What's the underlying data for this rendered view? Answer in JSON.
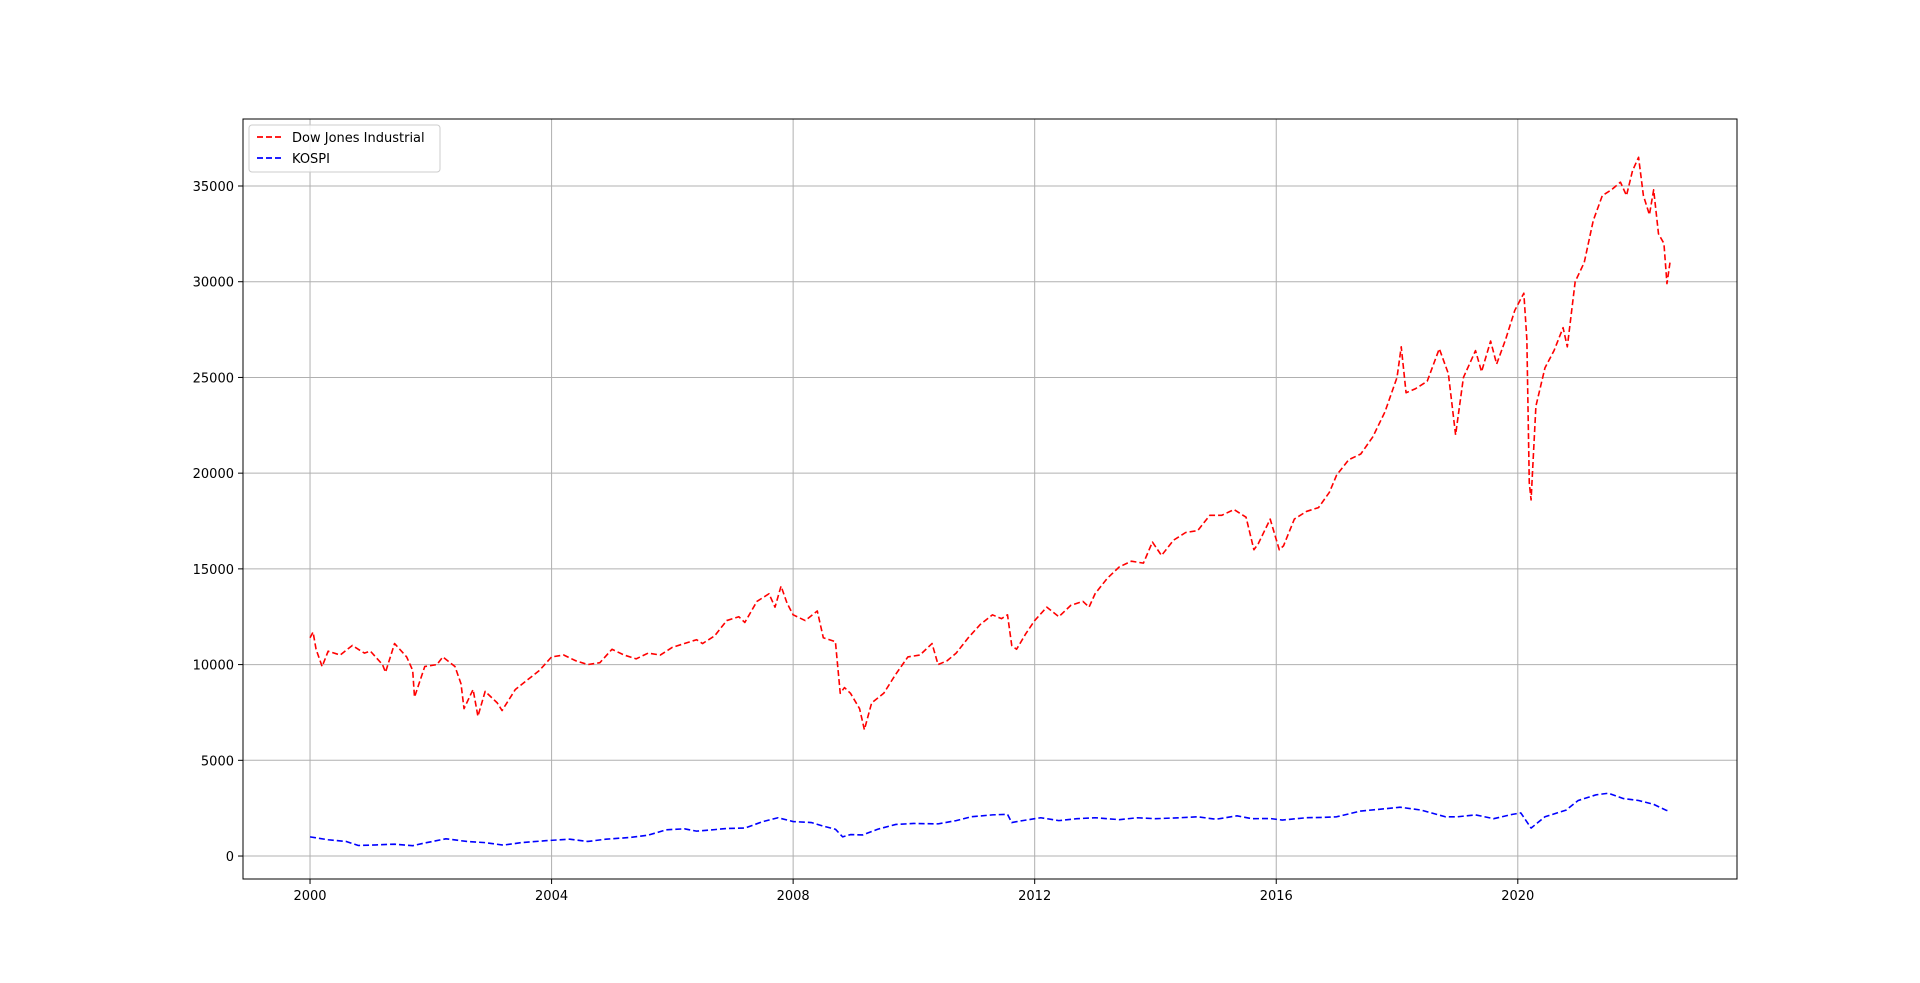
{
  "chart_data": {
    "type": "line",
    "title": "",
    "xlabel": "",
    "ylabel": "",
    "xlim": [
      1998.89,
      2023.63
    ],
    "ylim": [
      -1200,
      38500
    ],
    "xticks": [
      2000,
      2004,
      2008,
      2012,
      2016,
      2020
    ],
    "xtick_labels": [
      "2000",
      "2004",
      "2008",
      "2012",
      "2016",
      "2020"
    ],
    "yticks": [
      0,
      5000,
      10000,
      15000,
      20000,
      25000,
      30000,
      35000
    ],
    "ytick_labels": [
      "0",
      "5000",
      "10000",
      "15000",
      "20000",
      "25000",
      "30000",
      "35000"
    ],
    "grid": true,
    "legend_position": "upper-left",
    "series": [
      {
        "name": "Dow Jones Industrial",
        "color": "#ff0000",
        "linestyle": "dashed",
        "points": [
          [
            2000.0,
            11400
          ],
          [
            2000.05,
            11700
          ],
          [
            2000.1,
            10800
          ],
          [
            2000.2,
            9900
          ],
          [
            2000.3,
            10700
          ],
          [
            2000.5,
            10500
          ],
          [
            2000.7,
            11000
          ],
          [
            2000.9,
            10600
          ],
          [
            2001.0,
            10700
          ],
          [
            2001.2,
            10000
          ],
          [
            2001.25,
            9600
          ],
          [
            2001.4,
            11100
          ],
          [
            2001.6,
            10400
          ],
          [
            2001.7,
            9700
          ],
          [
            2001.73,
            8300
          ],
          [
            2001.9,
            9900
          ],
          [
            2002.1,
            10000
          ],
          [
            2002.2,
            10400
          ],
          [
            2002.4,
            9900
          ],
          [
            2002.5,
            9000
          ],
          [
            2002.55,
            7700
          ],
          [
            2002.7,
            8700
          ],
          [
            2002.78,
            7300
          ],
          [
            2002.9,
            8600
          ],
          [
            2003.1,
            8000
          ],
          [
            2003.18,
            7600
          ],
          [
            2003.4,
            8700
          ],
          [
            2003.6,
            9200
          ],
          [
            2003.8,
            9700
          ],
          [
            2004.0,
            10400
          ],
          [
            2004.2,
            10500
          ],
          [
            2004.4,
            10200
          ],
          [
            2004.6,
            10000
          ],
          [
            2004.8,
            10100
          ],
          [
            2005.0,
            10800
          ],
          [
            2005.2,
            10500
          ],
          [
            2005.4,
            10300
          ],
          [
            2005.6,
            10600
          ],
          [
            2005.8,
            10500
          ],
          [
            2006.0,
            10900
          ],
          [
            2006.2,
            11100
          ],
          [
            2006.4,
            11300
          ],
          [
            2006.5,
            11100
          ],
          [
            2006.7,
            11500
          ],
          [
            2006.9,
            12300
          ],
          [
            2007.1,
            12500
          ],
          [
            2007.2,
            12200
          ],
          [
            2007.4,
            13300
          ],
          [
            2007.6,
            13700
          ],
          [
            2007.7,
            13000
          ],
          [
            2007.8,
            14100
          ],
          [
            2007.9,
            13200
          ],
          [
            2008.0,
            12600
          ],
          [
            2008.2,
            12300
          ],
          [
            2008.4,
            12800
          ],
          [
            2008.5,
            11400
          ],
          [
            2008.7,
            11200
          ],
          [
            2008.78,
            8500
          ],
          [
            2008.85,
            8800
          ],
          [
            2008.95,
            8500
          ],
          [
            2009.1,
            7700
          ],
          [
            2009.18,
            6600
          ],
          [
            2009.3,
            8000
          ],
          [
            2009.5,
            8500
          ],
          [
            2009.7,
            9500
          ],
          [
            2009.9,
            10400
          ],
          [
            2010.1,
            10500
          ],
          [
            2010.3,
            11100
          ],
          [
            2010.4,
            10000
          ],
          [
            2010.55,
            10200
          ],
          [
            2010.7,
            10600
          ],
          [
            2010.9,
            11400
          ],
          [
            2011.1,
            12100
          ],
          [
            2011.3,
            12600
          ],
          [
            2011.45,
            12400
          ],
          [
            2011.55,
            12600
          ],
          [
            2011.62,
            11000
          ],
          [
            2011.7,
            10800
          ],
          [
            2011.85,
            11600
          ],
          [
            2012.0,
            12300
          ],
          [
            2012.2,
            13000
          ],
          [
            2012.4,
            12500
          ],
          [
            2012.6,
            13100
          ],
          [
            2012.8,
            13300
          ],
          [
            2012.9,
            13000
          ],
          [
            2013.0,
            13700
          ],
          [
            2013.2,
            14500
          ],
          [
            2013.4,
            15100
          ],
          [
            2013.6,
            15400
          ],
          [
            2013.8,
            15300
          ],
          [
            2013.95,
            16400
          ],
          [
            2014.1,
            15700
          ],
          [
            2014.3,
            16500
          ],
          [
            2014.5,
            16900
          ],
          [
            2014.7,
            17000
          ],
          [
            2014.9,
            17800
          ],
          [
            2015.1,
            17800
          ],
          [
            2015.3,
            18100
          ],
          [
            2015.5,
            17700
          ],
          [
            2015.63,
            16000
          ],
          [
            2015.7,
            16300
          ],
          [
            2015.9,
            17600
          ],
          [
            2016.05,
            16000
          ],
          [
            2016.12,
            16200
          ],
          [
            2016.3,
            17600
          ],
          [
            2016.5,
            18000
          ],
          [
            2016.7,
            18200
          ],
          [
            2016.88,
            19000
          ],
          [
            2017.0,
            19900
          ],
          [
            2017.2,
            20700
          ],
          [
            2017.4,
            21000
          ],
          [
            2017.6,
            21900
          ],
          [
            2017.8,
            23200
          ],
          [
            2018.0,
            25000
          ],
          [
            2018.07,
            26600
          ],
          [
            2018.15,
            24200
          ],
          [
            2018.3,
            24400
          ],
          [
            2018.5,
            24800
          ],
          [
            2018.7,
            26500
          ],
          [
            2018.85,
            25200
          ],
          [
            2018.97,
            22000
          ],
          [
            2019.1,
            25000
          ],
          [
            2019.3,
            26400
          ],
          [
            2019.4,
            25300
          ],
          [
            2019.55,
            26900
          ],
          [
            2019.65,
            25700
          ],
          [
            2019.8,
            27000
          ],
          [
            2019.95,
            28500
          ],
          [
            2020.1,
            29400
          ],
          [
            2020.15,
            27000
          ],
          [
            2020.19,
            19500
          ],
          [
            2020.22,
            18600
          ],
          [
            2020.3,
            23500
          ],
          [
            2020.45,
            25500
          ],
          [
            2020.6,
            26400
          ],
          [
            2020.75,
            27600
          ],
          [
            2020.82,
            26600
          ],
          [
            2020.95,
            30000
          ],
          [
            2021.1,
            31000
          ],
          [
            2021.25,
            33200
          ],
          [
            2021.4,
            34500
          ],
          [
            2021.55,
            34800
          ],
          [
            2021.7,
            35200
          ],
          [
            2021.8,
            34500
          ],
          [
            2021.9,
            35800
          ],
          [
            2022.0,
            36500
          ],
          [
            2022.08,
            34500
          ],
          [
            2022.18,
            33500
          ],
          [
            2022.25,
            34800
          ],
          [
            2022.33,
            32500
          ],
          [
            2022.42,
            32000
          ],
          [
            2022.47,
            29900
          ],
          [
            2022.52,
            31000
          ]
        ]
      },
      {
        "name": "KOSPI",
        "color": "#0000ff",
        "linestyle": "dashed",
        "points": [
          [
            2000.0,
            1000
          ],
          [
            2000.3,
            850
          ],
          [
            2000.6,
            760
          ],
          [
            2000.8,
            550
          ],
          [
            2001.1,
            580
          ],
          [
            2001.4,
            620
          ],
          [
            2001.7,
            540
          ],
          [
            2001.9,
            680
          ],
          [
            2002.25,
            900
          ],
          [
            2002.6,
            760
          ],
          [
            2002.9,
            700
          ],
          [
            2003.2,
            570
          ],
          [
            2003.5,
            700
          ],
          [
            2003.9,
            800
          ],
          [
            2004.3,
            880
          ],
          [
            2004.6,
            760
          ],
          [
            2004.9,
            880
          ],
          [
            2005.3,
            970
          ],
          [
            2005.6,
            1090
          ],
          [
            2005.9,
            1370
          ],
          [
            2006.2,
            1420
          ],
          [
            2006.4,
            1300
          ],
          [
            2006.7,
            1380
          ],
          [
            2006.9,
            1440
          ],
          [
            2007.2,
            1460
          ],
          [
            2007.5,
            1800
          ],
          [
            2007.75,
            2000
          ],
          [
            2008.0,
            1800
          ],
          [
            2008.3,
            1750
          ],
          [
            2008.5,
            1560
          ],
          [
            2008.7,
            1400
          ],
          [
            2008.82,
            1000
          ],
          [
            2008.95,
            1120
          ],
          [
            2009.15,
            1100
          ],
          [
            2009.4,
            1400
          ],
          [
            2009.7,
            1650
          ],
          [
            2010.0,
            1700
          ],
          [
            2010.4,
            1680
          ],
          [
            2010.7,
            1850
          ],
          [
            2010.95,
            2050
          ],
          [
            2011.3,
            2150
          ],
          [
            2011.55,
            2180
          ],
          [
            2011.62,
            1750
          ],
          [
            2011.8,
            1850
          ],
          [
            2012.1,
            2000
          ],
          [
            2012.4,
            1850
          ],
          [
            2012.7,
            1950
          ],
          [
            2013.0,
            2000
          ],
          [
            2013.4,
            1900
          ],
          [
            2013.7,
            2000
          ],
          [
            2014.0,
            1950
          ],
          [
            2014.4,
            2000
          ],
          [
            2014.7,
            2050
          ],
          [
            2015.0,
            1920
          ],
          [
            2015.35,
            2100
          ],
          [
            2015.6,
            1950
          ],
          [
            2015.9,
            1960
          ],
          [
            2016.1,
            1880
          ],
          [
            2016.5,
            2000
          ],
          [
            2016.8,
            2020
          ],
          [
            2017.0,
            2050
          ],
          [
            2017.4,
            2350
          ],
          [
            2017.8,
            2470
          ],
          [
            2018.05,
            2550
          ],
          [
            2018.4,
            2400
          ],
          [
            2018.8,
            2050
          ],
          [
            2019.0,
            2050
          ],
          [
            2019.3,
            2150
          ],
          [
            2019.6,
            1950
          ],
          [
            2019.9,
            2170
          ],
          [
            2020.05,
            2250
          ],
          [
            2020.22,
            1460
          ],
          [
            2020.45,
            2050
          ],
          [
            2020.8,
            2400
          ],
          [
            2021.0,
            2900
          ],
          [
            2021.3,
            3200
          ],
          [
            2021.5,
            3280
          ],
          [
            2021.75,
            3000
          ],
          [
            2022.0,
            2900
          ],
          [
            2022.25,
            2700
          ],
          [
            2022.45,
            2400
          ],
          [
            2022.52,
            2330
          ]
        ]
      }
    ]
  }
}
